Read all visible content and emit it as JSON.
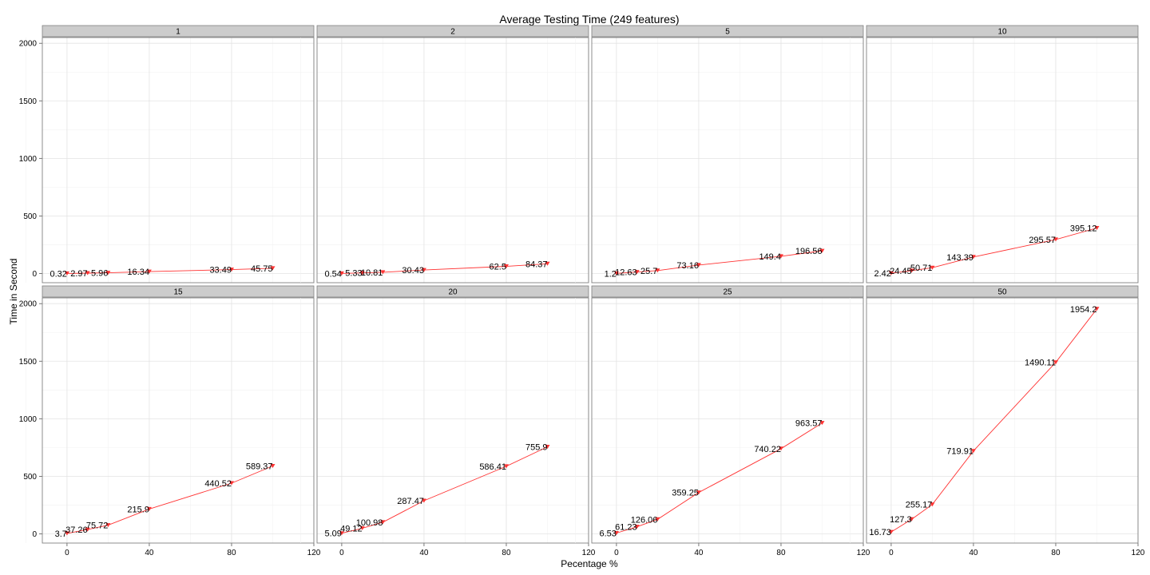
{
  "chart_data": {
    "type": "line",
    "title": "Average Testing Time (249 features)",
    "xlabel": "Pecentage %",
    "ylabel": "Time in Second",
    "xlim": [
      -12,
      120
    ],
    "ylim": [
      -80,
      2050
    ],
    "x_ticks": [
      0,
      40,
      80,
      120
    ],
    "y_ticks": [
      0,
      500,
      1000,
      1500,
      2000
    ],
    "grid": true,
    "line_color": "#ff3333",
    "panels": [
      {
        "label": "1",
        "x": [
          0,
          10,
          20,
          40,
          80,
          100
        ],
        "y": [
          0.32,
          2.97,
          5.96,
          16.34,
          33.49,
          45.75
        ],
        "point_labels": [
          "0.32",
          "2.97",
          "5.96",
          "16.34",
          "33.49",
          "45.75"
        ]
      },
      {
        "label": "2",
        "x": [
          0,
          10,
          20,
          40,
          80,
          100
        ],
        "y": [
          0.54,
          5.33,
          10.81,
          30.43,
          62.5,
          84.37
        ],
        "point_labels": [
          "0.54",
          "5.33",
          "10.81",
          "30.43",
          "62.5",
          "84.37"
        ]
      },
      {
        "label": "5",
        "x": [
          0,
          10,
          20,
          40,
          80,
          100
        ],
        "y": [
          1.2,
          12.63,
          25.7,
          73.16,
          149.4,
          196.56
        ],
        "point_labels": [
          "1.2",
          "12.63",
          "25.7",
          "73.16",
          "149.4",
          "196.56"
        ]
      },
      {
        "label": "10",
        "x": [
          0,
          10,
          20,
          40,
          80,
          100
        ],
        "y": [
          2.42,
          24.45,
          50.71,
          143.39,
          295.57,
          395.12
        ],
        "point_labels": [
          "2.42",
          "24.45",
          "50.71",
          "143.39",
          "295.57",
          "395.12"
        ]
      },
      {
        "label": "15",
        "x": [
          0,
          10,
          20,
          40,
          80,
          100
        ],
        "y": [
          3.7,
          37.26,
          75.72,
          215.9,
          440.52,
          589.37
        ],
        "point_labels": [
          "3.7",
          "37.26",
          "75.72",
          "215.9",
          "440.52",
          "589.37"
        ]
      },
      {
        "label": "20",
        "x": [
          0,
          10,
          20,
          40,
          80,
          100
        ],
        "y": [
          5.09,
          49.12,
          100.98,
          287.47,
          586.41,
          755.9
        ],
        "point_labels": [
          "5.09",
          "49.12",
          "100.98",
          "287.47",
          "586.41",
          "755.9"
        ]
      },
      {
        "label": "25",
        "x": [
          0,
          10,
          20,
          40,
          80,
          100
        ],
        "y": [
          6.53,
          61.23,
          126.06,
          359.25,
          740.22,
          963.57
        ],
        "point_labels": [
          "6.53",
          "61.23",
          "126.06",
          "359.25",
          "740.22",
          "963.57"
        ]
      },
      {
        "label": "50",
        "x": [
          0,
          10,
          20,
          40,
          80,
          100
        ],
        "y": [
          16.73,
          127.3,
          255.17,
          719.91,
          1490.11,
          1954.2
        ],
        "point_labels": [
          "16.73",
          "127.3",
          "255.17",
          "719.91",
          "1490.11",
          "1954.2"
        ]
      }
    ]
  }
}
